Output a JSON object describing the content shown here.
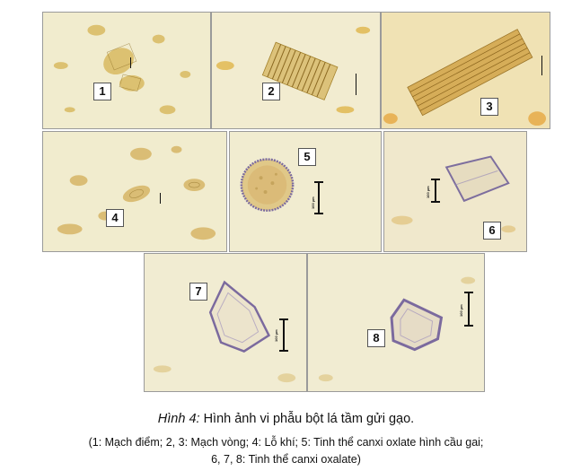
{
  "figure": {
    "panels": [
      {
        "label": "1",
        "scale_text": "",
        "structure": "scattered-cells"
      },
      {
        "label": "2",
        "scale_text": "",
        "structure": "spiral-vessel"
      },
      {
        "label": "3",
        "scale_text": "",
        "structure": "annular-vessel"
      },
      {
        "label": "4",
        "scale_text": "",
        "structure": "stomata"
      },
      {
        "label": "5",
        "scale_text": "100 µm",
        "structure": "spiky-crystal"
      },
      {
        "label": "6",
        "scale_text": "100 µm",
        "structure": "prism-crystal"
      },
      {
        "label": "7",
        "scale_text": "100 µm",
        "structure": "hexagonal-crystal"
      },
      {
        "label": "8",
        "scale_text": "100 µm",
        "structure": "hexagonal-crystal"
      }
    ],
    "caption": {
      "prefix": "Hình 4:",
      "title": "Hình ảnh vi phẫu bột lá tầm gửi gạo.",
      "legend_line1": "(1: Mạch điểm; 2, 3: Mạch vòng; 4: Lỗ khí; 5: Tinh thể canxi oxlate hình cầu gai;",
      "legend_line2": "6, 7, 8: Tinh thể canxi oxalate)"
    },
    "colors": {
      "background": "#efe9c9",
      "tissue": "#c9a24a",
      "crystal_edge": "#6f5e9a"
    }
  }
}
